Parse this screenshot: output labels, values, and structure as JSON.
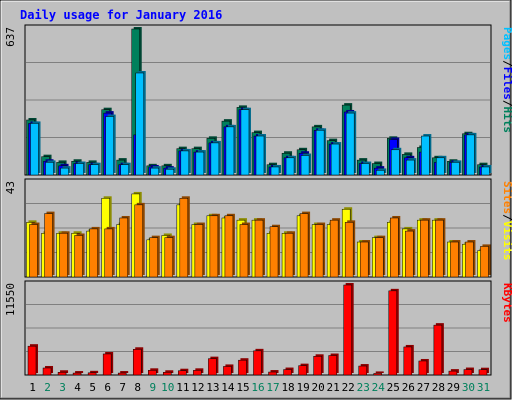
{
  "colors": {
    "frame_bg": "#c0c0c0",
    "title_text": "#0000ff",
    "hits": "#00805c",
    "files": "#0000ff",
    "pages": "#00c0ff",
    "visits": "#ffff00",
    "sites": "#ff8000",
    "kbytes": "#ff0000",
    "weekday_label": "#000000",
    "weekend_label": "#00805c"
  },
  "chart_data": {
    "type": "bar",
    "title": "Daily usage for January 2016",
    "categories": [
      "1",
      "2",
      "3",
      "4",
      "5",
      "6",
      "7",
      "8",
      "9",
      "10",
      "11",
      "12",
      "13",
      "14",
      "15",
      "16",
      "17",
      "18",
      "19",
      "20",
      "21",
      "22",
      "23",
      "24",
      "25",
      "26",
      "27",
      "28",
      "29",
      "30",
      "31"
    ],
    "weekend_days": [
      "2",
      "3",
      "9",
      "10",
      "16",
      "17",
      "23",
      "24",
      "30",
      "31"
    ],
    "panels": [
      {
        "id": "top",
        "max_label": "637",
        "ylim": [
          0,
          637
        ],
        "legend": [
          "Pages",
          "Files",
          "Hits"
        ],
        "legend_separator": "/",
        "series": [
          {
            "name": "Hits",
            "values": [
              240,
              80,
              55,
              60,
              55,
              285,
              65,
              637,
              40,
              40,
              115,
              115,
              160,
              235,
              295,
              185,
              45,
              95,
              110,
              210,
              150,
              305,
              65,
              50,
              160,
              90,
              120,
              75,
              60,
              180,
              45
            ]
          },
          {
            "name": "Files",
            "values": [
              225,
              60,
              40,
              50,
              45,
              270,
              45,
              175,
              35,
              30,
              105,
              100,
              140,
              210,
              285,
              170,
              35,
              75,
              95,
              195,
              135,
              275,
              50,
              30,
              155,
              75,
              100,
              55,
              55,
              175,
              35
            ]
          },
          {
            "name": "Pages",
            "values": [
              225,
              55,
              30,
              50,
              45,
              255,
              45,
              445,
              30,
              25,
              105,
              100,
              140,
              210,
              285,
              170,
              35,
              75,
              85,
              195,
              135,
              270,
              50,
              20,
              110,
              65,
              170,
              75,
              55,
              175,
              35
            ]
          }
        ]
      },
      {
        "id": "middle",
        "max_label": "43",
        "ylim": [
          0,
          43
        ],
        "legend": [
          "Sites",
          "Visits"
        ],
        "legend_separator": "/",
        "series": [
          {
            "name": "Visits",
            "values": [
              25,
              20,
              20,
              20,
              21,
              36,
              24,
              38,
              17,
              19,
              33,
              24,
              28,
              27,
              26,
              26,
              20,
              20,
              28,
              24,
              24,
              31,
              16,
              18,
              25,
              22,
              26,
              26,
              16,
              15,
              12
            ]
          },
          {
            "name": "Sites",
            "values": [
              24,
              29,
              20,
              19,
              22,
              22,
              27,
              33,
              18,
              18,
              36,
              24,
              28,
              28,
              24,
              26,
              23,
              20,
              29,
              24,
              26,
              25,
              16,
              18,
              27,
              21,
              26,
              26,
              16,
              16,
              14
            ]
          }
        ]
      },
      {
        "id": "bottom",
        "max_label": "11550",
        "ylim": [
          0,
          11550
        ],
        "legend": [
          "KBytes"
        ],
        "legend_separator": "/",
        "series": [
          {
            "name": "KBytes",
            "values": [
              3700,
              900,
              350,
              250,
              280,
              2700,
              250,
              3300,
              600,
              350,
              550,
              600,
              2100,
              1100,
              1900,
              3100,
              380,
              700,
              1200,
              2400,
              2500,
              11550,
              1150,
              200,
              10800,
              3600,
              1800,
              6400,
              500,
              700,
              680
            ]
          }
        ]
      }
    ]
  }
}
